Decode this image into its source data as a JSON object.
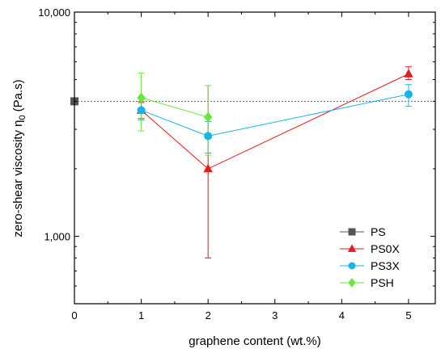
{
  "chart_data": {
    "type": "line",
    "xlabel": "graphene content (wt.%)",
    "ylabel": "zero-shear viscosity η",
    "ylabel_sub": "0",
    "ylabel_unit": "(Pa.s)",
    "xlim": [
      0,
      5.4
    ],
    "ylim": [
      500,
      10000
    ],
    "yscale": "log",
    "x_ticks": [
      0,
      1,
      2,
      3,
      4,
      5
    ],
    "x_tick_labels": [
      "0",
      "1",
      "2",
      "3",
      "4",
      "5"
    ],
    "y_ticks": [
      1000,
      10000
    ],
    "y_tick_labels": [
      "1,000",
      "10,000"
    ],
    "legend_position": "bottom-right",
    "reference_line": {
      "y": 4000,
      "style": "dotted",
      "color": "#666666"
    },
    "series": [
      {
        "name": "PS",
        "marker": "square",
        "color": "#555555",
        "show_line": false,
        "x": [
          0
        ],
        "y": [
          4000
        ],
        "err_low": [
          0
        ],
        "err_high": [
          0
        ]
      },
      {
        "name": "PS0X",
        "marker": "triangle",
        "color": "#e41a1c",
        "show_line": true,
        "x": [
          1,
          2,
          5
        ],
        "y": [
          3650,
          2000,
          5300
        ],
        "err_low": [
          300,
          1200,
          300
        ],
        "err_high": [
          300,
          2700,
          400
        ]
      },
      {
        "name": "PS3X",
        "marker": "circle",
        "color": "#17b4e8",
        "show_line": true,
        "x": [
          1,
          2,
          5
        ],
        "y": [
          3650,
          2800,
          4300
        ],
        "err_low": [
          350,
          450,
          500
        ],
        "err_high": [
          350,
          450,
          450
        ]
      },
      {
        "name": "PSH",
        "marker": "diamond",
        "color": "#6ee639",
        "show_line": true,
        "x": [
          1,
          2
        ],
        "y": [
          4150,
          3400
        ],
        "err_low": [
          1200,
          1100
        ],
        "err_high": [
          1200,
          1300
        ]
      }
    ]
  }
}
